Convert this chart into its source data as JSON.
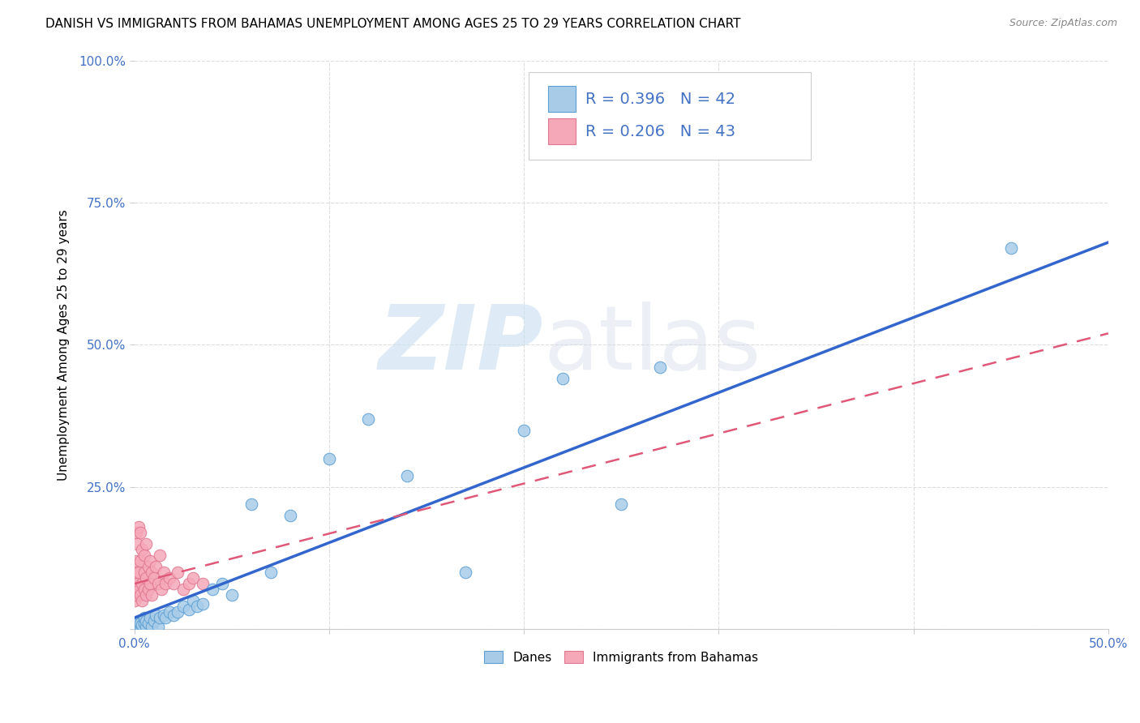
{
  "title": "DANISH VS IMMIGRANTS FROM BAHAMAS UNEMPLOYMENT AMONG AGES 25 TO 29 YEARS CORRELATION CHART",
  "source": "Source: ZipAtlas.com",
  "ylabel": "Unemployment Among Ages 25 to 29 years",
  "xlim": [
    0.0,
    0.5
  ],
  "ylim": [
    0.0,
    1.0
  ],
  "xticks": [
    0.0,
    0.1,
    0.2,
    0.3,
    0.4,
    0.5
  ],
  "yticks": [
    0.0,
    0.25,
    0.5,
    0.75,
    1.0
  ],
  "xticklabels": [
    "0.0%",
    "",
    "",
    "",
    "",
    "50.0%"
  ],
  "yticklabels": [
    "",
    "25.0%",
    "50.0%",
    "75.0%",
    "100.0%"
  ],
  "danes_color": "#a8cce8",
  "danes_edge_color": "#5b9fd4",
  "immigrants_color": "#f5a8b8",
  "immigrants_edge_color": "#e07890",
  "trend_danes_color": "#3366cc",
  "trend_immigrants_color": "#e05878",
  "legend_box_color": "#a8cce8",
  "legend_box_color2": "#f5a8b8",
  "legend_edge_color": "#cccccc",
  "tick_color": "#4472c4",
  "background_color": "#ffffff",
  "grid_color": "#dddddd",
  "title_fontsize": 11,
  "axis_label_fontsize": 11,
  "tick_fontsize": 11,
  "legend_fontsize": 14,
  "danes_R": 0.396,
  "danes_N": 42,
  "immigrants_R": 0.206,
  "immigrants_N": 43,
  "danes_x": [
    0.001,
    0.002,
    0.002,
    0.003,
    0.003,
    0.004,
    0.005,
    0.005,
    0.006,
    0.006,
    0.007,
    0.008,
    0.009,
    0.01,
    0.011,
    0.012,
    0.013,
    0.015,
    0.016,
    0.018,
    0.02,
    0.022,
    0.025,
    0.028,
    0.03,
    0.032,
    0.035,
    0.04,
    0.045,
    0.05,
    0.06,
    0.07,
    0.08,
    0.1,
    0.12,
    0.14,
    0.17,
    0.2,
    0.22,
    0.25,
    0.27,
    0.45
  ],
  "danes_y": [
    0.005,
    0.005,
    0.01,
    0.005,
    0.01,
    0.008,
    0.01,
    0.02,
    0.005,
    0.015,
    0.01,
    0.02,
    0.005,
    0.015,
    0.025,
    0.005,
    0.02,
    0.025,
    0.02,
    0.03,
    0.025,
    0.03,
    0.04,
    0.035,
    0.05,
    0.04,
    0.045,
    0.07,
    0.08,
    0.06,
    0.22,
    0.1,
    0.2,
    0.3,
    0.37,
    0.27,
    0.1,
    0.35,
    0.44,
    0.22,
    0.46,
    0.67
  ],
  "immigrants_x": [
    0.0002,
    0.0003,
    0.0005,
    0.0007,
    0.001,
    0.001,
    0.0015,
    0.0015,
    0.002,
    0.002,
    0.0025,
    0.003,
    0.003,
    0.003,
    0.004,
    0.004,
    0.004,
    0.005,
    0.005,
    0.005,
    0.006,
    0.006,
    0.006,
    0.007,
    0.007,
    0.008,
    0.008,
    0.009,
    0.009,
    0.01,
    0.011,
    0.012,
    0.013,
    0.014,
    0.015,
    0.016,
    0.018,
    0.02,
    0.022,
    0.025,
    0.028,
    0.03,
    0.035
  ],
  "immigrants_y": [
    0.05,
    0.08,
    0.06,
    0.1,
    0.12,
    0.17,
    0.08,
    0.15,
    0.1,
    0.18,
    0.07,
    0.06,
    0.12,
    0.17,
    0.05,
    0.08,
    0.14,
    0.07,
    0.1,
    0.13,
    0.06,
    0.09,
    0.15,
    0.07,
    0.11,
    0.08,
    0.12,
    0.06,
    0.1,
    0.09,
    0.11,
    0.08,
    0.13,
    0.07,
    0.1,
    0.08,
    0.09,
    0.08,
    0.1,
    0.07,
    0.08,
    0.09,
    0.08
  ],
  "danes_trend_x0": 0.0,
  "danes_trend_y0": 0.02,
  "danes_trend_x1": 0.5,
  "danes_trend_y1": 0.68,
  "immigrants_trend_x0": 0.0,
  "immigrants_trend_y0": 0.08,
  "immigrants_trend_x1": 0.5,
  "immigrants_trend_y1": 0.52
}
